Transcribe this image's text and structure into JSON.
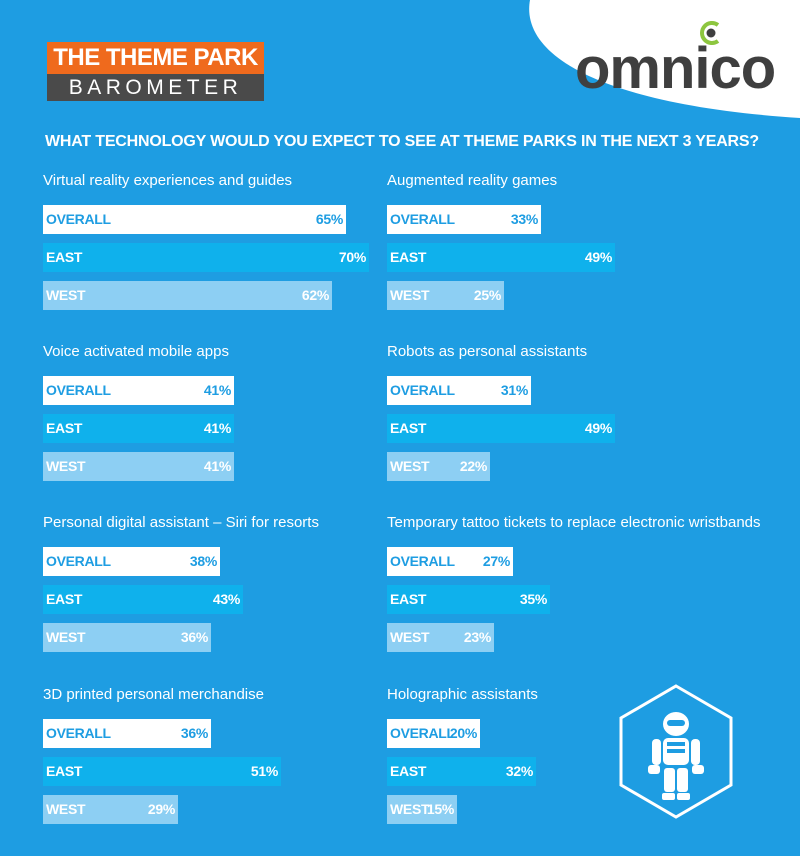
{
  "header": {
    "badge_top": "THE THEME PARK",
    "badge_bottom": "BAROMETER",
    "brand": "omnico",
    "question": "WHAT TECHNOLOGY WOULD YOU EXPECT TO SEE AT THEME PARKS IN THE NEXT 3 YEARS?"
  },
  "colors": {
    "background": "#1e9de2",
    "overall": "#ffffff",
    "east": "#0fb1ec",
    "west": "#8dcff3",
    "badge_orange": "#ef6a1d",
    "badge_gray": "#4a4a4a"
  },
  "icons": {
    "decorative": "robot-icon"
  },
  "chart_data": [
    {
      "type": "bar",
      "title": "Virtual reality experiences and guides",
      "categories": [
        "OVERALL",
        "EAST",
        "WEST"
      ],
      "values": [
        65,
        70,
        62
      ],
      "labels": [
        "65%",
        "70%",
        "62%"
      ]
    },
    {
      "type": "bar",
      "title": "Augmented reality games",
      "categories": [
        "OVERALL",
        "EAST",
        "WEST"
      ],
      "values": [
        33,
        49,
        25
      ],
      "labels": [
        "33%",
        "49%",
        "25%"
      ]
    },
    {
      "type": "bar",
      "title": "Voice activated mobile apps",
      "categories": [
        "OVERALL",
        "EAST",
        "WEST"
      ],
      "values": [
        41,
        41,
        41
      ],
      "labels": [
        "41%",
        "41%",
        "41%"
      ]
    },
    {
      "type": "bar",
      "title": "Robots as personal assistants",
      "categories": [
        "OVERALL",
        "EAST",
        "WEST"
      ],
      "values": [
        31,
        49,
        22
      ],
      "labels": [
        "31%",
        "49%",
        "22%"
      ]
    },
    {
      "type": "bar",
      "title": "Personal digital assistant – Siri for resorts",
      "categories": [
        "OVERALL",
        "EAST",
        "WEST"
      ],
      "values": [
        38,
        43,
        36
      ],
      "labels": [
        "38%",
        "43%",
        "36%"
      ]
    },
    {
      "type": "bar",
      "title": "Temporary tattoo tickets to replace electronic wristbands",
      "categories": [
        "OVERALL",
        "EAST",
        "WEST"
      ],
      "values": [
        27,
        35,
        23
      ],
      "labels": [
        "27%",
        "35%",
        "23%"
      ]
    },
    {
      "type": "bar",
      "title": "3D printed personal merchandise",
      "categories": [
        "OVERALL",
        "EAST",
        "WEST"
      ],
      "values": [
        36,
        51,
        29
      ],
      "labels": [
        "36%",
        "51%",
        "29%"
      ]
    },
    {
      "type": "bar",
      "title": "Holographic assistants",
      "categories": [
        "OVERALL",
        "EAST",
        "WEST"
      ],
      "values": [
        20,
        32,
        15
      ],
      "labels": [
        "20%",
        "32%",
        "15%"
      ]
    }
  ]
}
